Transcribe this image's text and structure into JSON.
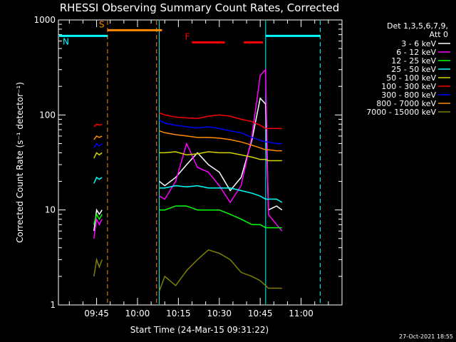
{
  "chart_data": {
    "type": "line",
    "title": "RHESSI Observing Summary Count Rates, Corrected",
    "xlabel": "Start Time (24-Mar-15 09:31:22)",
    "ylabel": "Corrected Count Rate (s⁻¹ detector⁻¹)",
    "y_scale": "log",
    "ylim": [
      1,
      1000
    ],
    "xlim": [
      "09:31",
      "11:15"
    ],
    "x_ticks": [
      "09:45",
      "10:00",
      "10:15",
      "10:30",
      "10:45",
      "11:00"
    ],
    "y_ticks": [
      "1",
      "10",
      "100",
      "1000"
    ],
    "legend_header": [
      "Det 1,3,5,6,7,9,",
      "Att 0"
    ],
    "legend_position": "right",
    "date_stamp": "27-Oct-2021 18:55",
    "flags": [
      {
        "label": "S",
        "color": "#ff8c00",
        "value": 780,
        "segments": [
          [
            "09:49",
            "10:09"
          ]
        ]
      },
      {
        "label": "N",
        "color": "#00ffff",
        "value": 680,
        "segments": [
          [
            "09:31",
            "09:49"
          ],
          [
            "10:47",
            "11:07"
          ]
        ]
      },
      {
        "label": "F",
        "color": "#ff0000",
        "value": 580,
        "segments": [
          [
            "10:20",
            "10:32"
          ],
          [
            "10:39",
            "10:46"
          ]
        ]
      }
    ],
    "markers": [
      {
        "time": "09:49",
        "color": "#ff8c00",
        "style": "dashed"
      },
      {
        "time": "10:07",
        "color": "#ff8c00",
        "style": "dashed"
      },
      {
        "time": "10:08",
        "color": "#00ffff",
        "style": "solid"
      },
      {
        "time": "10:47",
        "color": "#00ffff",
        "style": "solid"
      },
      {
        "time": "11:07",
        "color": "#00ffff",
        "style": "dashed"
      }
    ],
    "x_samples_1": [
      "09:44",
      "09:45",
      "09:46",
      "09:47"
    ],
    "x_samples_2": [
      "10:08",
      "10:10",
      "10:14",
      "10:18",
      "10:22",
      "10:26",
      "10:30",
      "10:34",
      "10:38",
      "10:42",
      "10:45",
      "10:47",
      "10:48",
      "10:51",
      "10:53"
    ],
    "series": [
      {
        "name": "3 - 6 keV",
        "color": "#ffffff",
        "v1": [
          6,
          10,
          9,
          10
        ],
        "v2": [
          20,
          18,
          22,
          30,
          40,
          30,
          25,
          16,
          22,
          55,
          150,
          130,
          10,
          11,
          10
        ]
      },
      {
        "name": "6 - 12 keV",
        "color": "#ff00ff",
        "v1": [
          5,
          8,
          7,
          8
        ],
        "v2": [
          14,
          13,
          20,
          50,
          28,
          25,
          18,
          12,
          18,
          60,
          260,
          300,
          9,
          7,
          6
        ]
      },
      {
        "name": "12 - 25 keV",
        "color": "#00ff00",
        "v1": [
          7,
          9,
          8,
          9
        ],
        "v2": [
          10,
          10,
          11,
          11,
          10,
          10,
          10,
          9,
          8,
          7,
          7,
          6.5,
          6.5,
          6.5,
          6.5
        ]
      },
      {
        "name": "25 - 50 keV",
        "color": "#00ffff",
        "v1": [
          19,
          22,
          21,
          22
        ],
        "v2": [
          17,
          17,
          18,
          17.5,
          18,
          17,
          17,
          17,
          16,
          15,
          14,
          13,
          13,
          13,
          12
        ]
      },
      {
        "name": "50 - 100 keV",
        "color": "#d4d400",
        "v1": [
          35,
          40,
          38,
          40
        ],
        "v2": [
          40,
          40,
          41,
          38,
          39,
          41,
          40,
          40,
          38,
          36,
          34,
          34,
          33,
          33,
          33
        ]
      },
      {
        "name": "100 - 300 keV",
        "color": "#ff0000",
        "v1": [
          75,
          80,
          78,
          80
        ],
        "v2": [
          105,
          100,
          95,
          93,
          92,
          97,
          100,
          97,
          90,
          85,
          78,
          72,
          72,
          72,
          72
        ]
      },
      {
        "name": "300 - 800 keV",
        "color": "#0000ff",
        "v1": [
          45,
          50,
          47,
          50
        ],
        "v2": [
          88,
          82,
          78,
          75,
          73,
          75,
          72,
          68,
          65,
          58,
          54,
          52,
          52,
          50,
          50
        ]
      },
      {
        "name": "800 - 7000 keV",
        "color": "#ff8c00",
        "v1": [
          55,
          60,
          58,
          60
        ],
        "v2": [
          68,
          65,
          62,
          60,
          58,
          58,
          57,
          55,
          52,
          48,
          45,
          43,
          43,
          42,
          42
        ]
      },
      {
        "name": "7000 - 15000 keV",
        "color": "#808000",
        "v1": [
          2,
          3,
          2.5,
          3
        ],
        "v2": [
          1.4,
          2,
          1.6,
          2.3,
          3,
          3.8,
          3.5,
          3,
          2.2,
          2,
          1.8,
          1.6,
          1.5,
          1.5,
          1.5
        ]
      }
    ]
  }
}
